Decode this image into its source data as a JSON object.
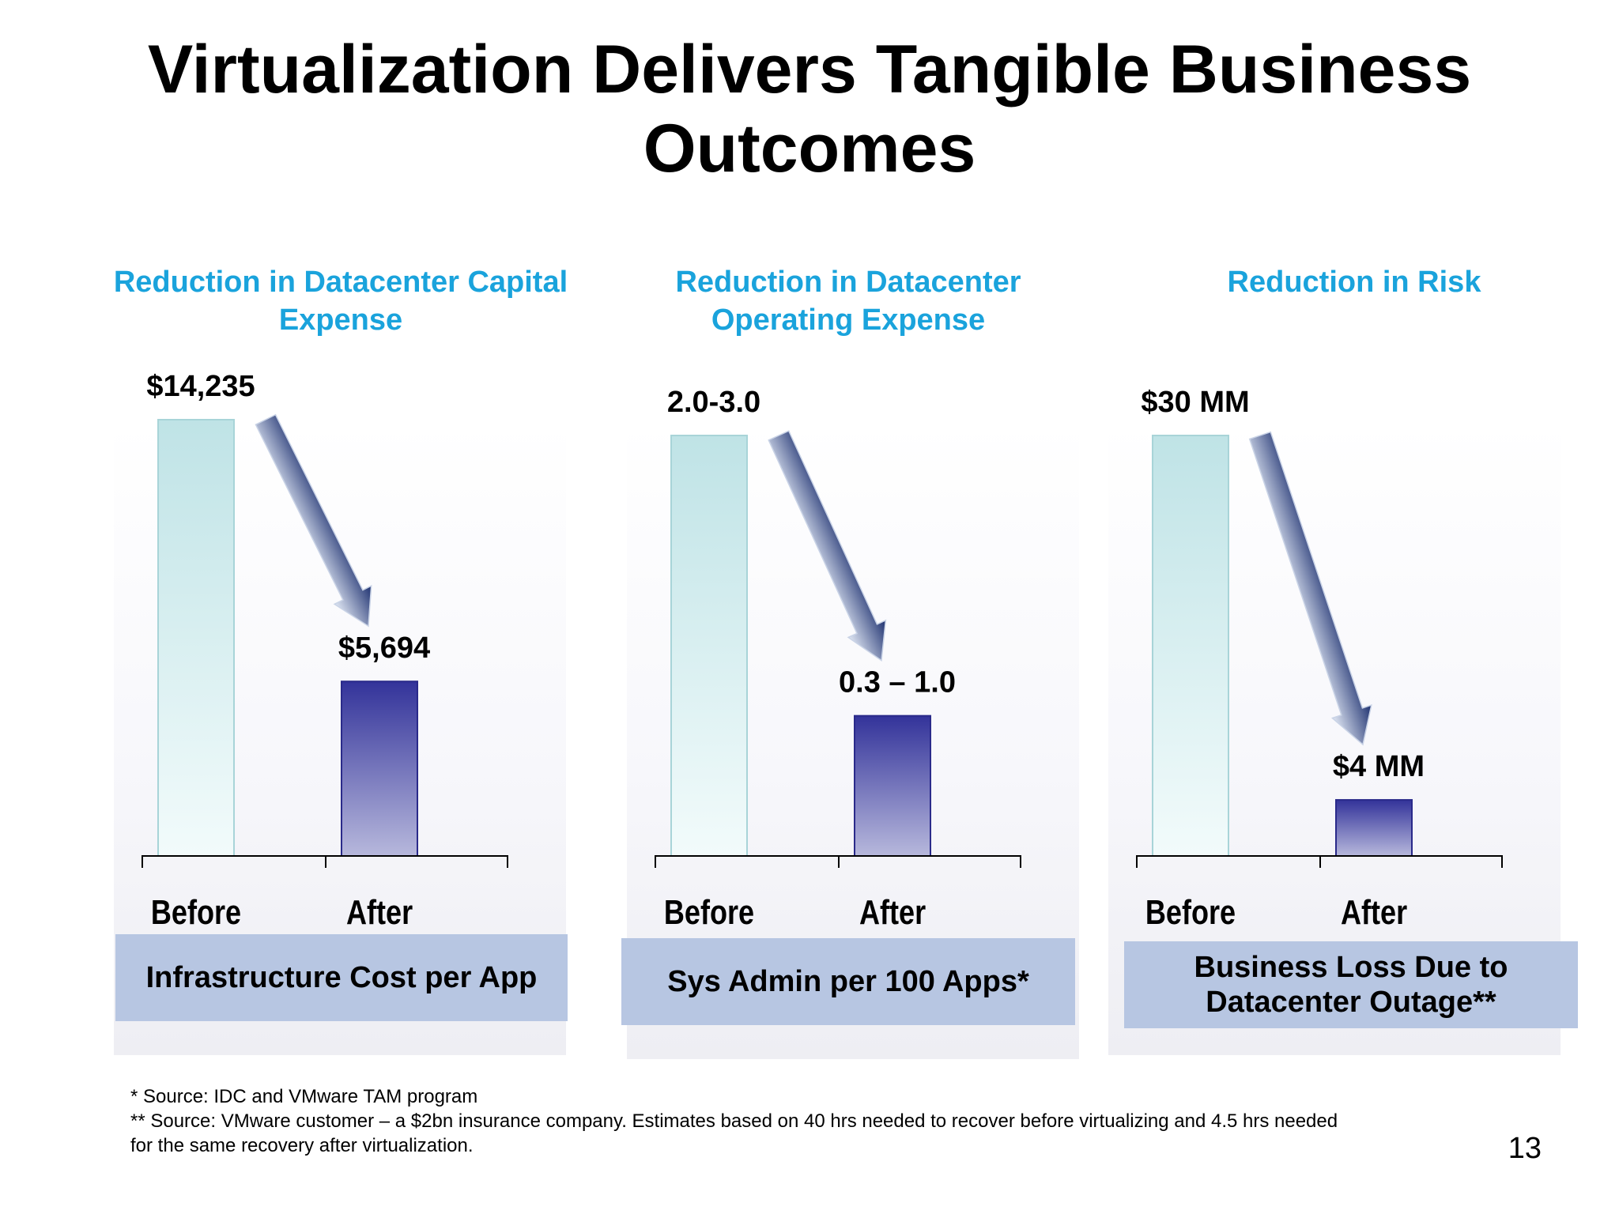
{
  "title": "Virtualization Delivers Tangible Business Outcomes",
  "chart_data": [
    {
      "type": "bar",
      "title": "Reduction in Datacenter Capital Expense",
      "categories": [
        "Before",
        "After"
      ],
      "values": [
        14235,
        5694
      ],
      "value_labels": [
        "$14,235",
        "$5,694"
      ],
      "xlabel": "Infrastructure Cost per App",
      "ylim": [
        0,
        14235
      ],
      "grid": false,
      "legend": "none",
      "colors": {
        "before": "#bfe3e6",
        "after": "#33339a"
      }
    },
    {
      "type": "bar",
      "title": "Reduction in Datacenter Operating Expense",
      "categories": [
        "Before",
        "After"
      ],
      "values": [
        3.0,
        1.0
      ],
      "value_labels": [
        "2.0-3.0",
        "0.3 – 1.0"
      ],
      "xlabel": "Sys Admin per 100 Apps*",
      "ylim": [
        0,
        3.0
      ],
      "grid": false,
      "legend": "none",
      "colors": {
        "before": "#bfe3e6",
        "after": "#33339a"
      }
    },
    {
      "type": "bar",
      "title": "Reduction in Risk",
      "categories": [
        "Before",
        "After"
      ],
      "values": [
        30,
        4
      ],
      "value_labels": [
        "$30 MM",
        "$4 MM"
      ],
      "xlabel": "Business Loss Due to Datacenter Outage**",
      "ylim": [
        0,
        30
      ],
      "grid": false,
      "legend": "none",
      "colors": {
        "before": "#bfe3e6",
        "after": "#33339a"
      }
    }
  ],
  "footnotes": [
    "* Source: IDC and VMware TAM program",
    "** Source: VMware customer – a $2bn insurance company. Estimates based on 40 hrs needed to recover before virtualizing and 4.5 hrs needed for the same recovery after virtualization."
  ],
  "page_number": "13"
}
